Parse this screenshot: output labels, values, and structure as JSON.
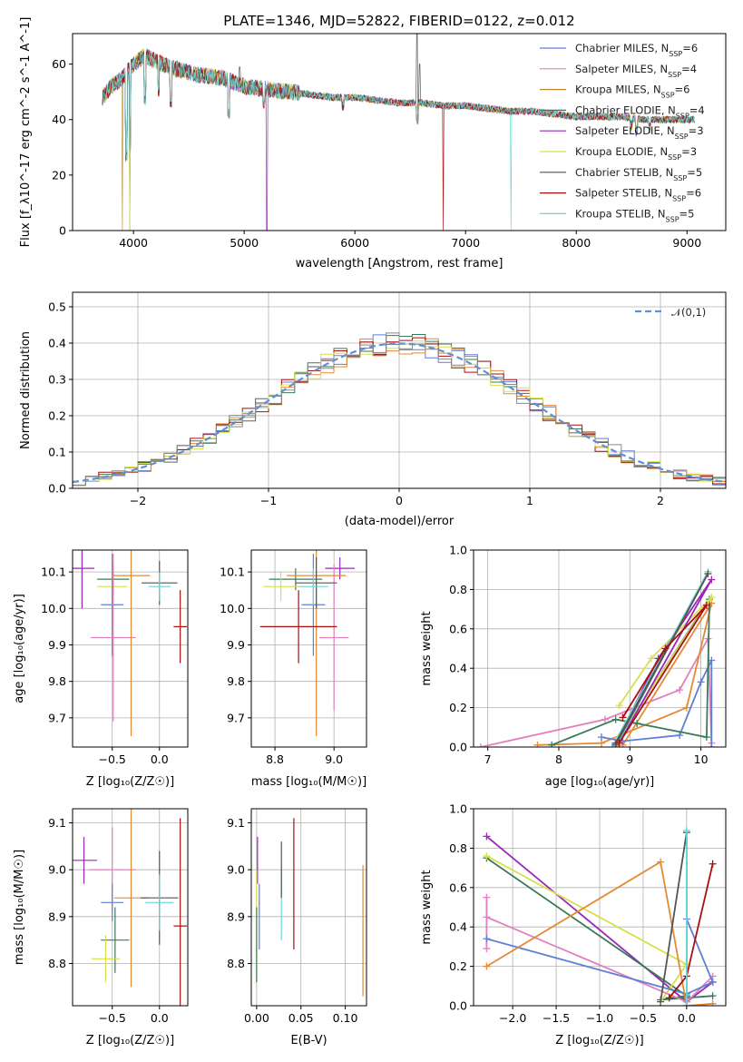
{
  "figure": {
    "title": "PLATE=1346, MJD=52822, FIBERID=0122, z=0.012"
  },
  "legend_entries": [
    {
      "name": "Chabrier MILES, N_SSP=6",
      "color": "#5f7fd6"
    },
    {
      "name": "Salpeter MILES, N_SSP=4",
      "color": "#e27fbe"
    },
    {
      "name": "Kroupa MILES, N_SSP=6",
      "color": "#c08a2a"
    },
    {
      "name": "Chabrier ELODIE, N_SSP=4",
      "color": "#3a7a5a"
    },
    {
      "name": "Salpeter ELODIE, N_SSP=3",
      "color": "#9b26b6"
    },
    {
      "name": "Kroupa ELODIE, N_SSP=3",
      "color": "#d7e04a"
    },
    {
      "name": "Chabrier STELIB, N_SSP=5",
      "color": "#555555"
    },
    {
      "name": "Salpeter STELIB, N_SSP=6",
      "color": "#a80f0f"
    },
    {
      "name": "Kroupa STELIB, N_SSP=5",
      "color": "#6ad6d6"
    }
  ],
  "chart_data": [
    {
      "id": "spectrum",
      "type": "line",
      "xlabel": "wavelength [Angstrom, rest frame]",
      "ylabel": "Flux [f_λ10^-17 erg cm^-2 s^-1 A^-1]",
      "xlim": [
        3450,
        9350
      ],
      "ylim": [
        0,
        71
      ],
      "xticks": [
        4000,
        5000,
        6000,
        7000,
        8000,
        9000
      ],
      "yticks": [
        0,
        20,
        40,
        60
      ],
      "continuum": [
        [
          3720,
          48
        ],
        [
          3800,
          52
        ],
        [
          3900,
          55
        ],
        [
          4000,
          60
        ],
        [
          4100,
          63
        ],
        [
          4200,
          61
        ],
        [
          4400,
          58
        ],
        [
          4600,
          56
        ],
        [
          4800,
          55
        ],
        [
          5000,
          52
        ],
        [
          5200,
          51
        ],
        [
          5400,
          50
        ],
        [
          5600,
          49
        ],
        [
          5800,
          48
        ],
        [
          6000,
          48
        ],
        [
          6200,
          47
        ],
        [
          6400,
          46
        ],
        [
          6600,
          46
        ],
        [
          6800,
          45
        ],
        [
          7000,
          45
        ],
        [
          7200,
          44
        ],
        [
          7400,
          43
        ],
        [
          7600,
          43
        ],
        [
          7800,
          42
        ],
        [
          8000,
          41
        ],
        [
          8200,
          41
        ],
        [
          8400,
          41
        ],
        [
          8600,
          40
        ],
        [
          8800,
          40
        ],
        [
          9000,
          40
        ],
        [
          9070,
          40
        ]
      ],
      "dips": [
        [
          3934,
          25
        ],
        [
          3969,
          28
        ],
        [
          4102,
          45
        ],
        [
          4227,
          48
        ],
        [
          4340,
          44
        ],
        [
          4861,
          40
        ],
        [
          5176,
          44
        ],
        [
          5890,
          43
        ],
        [
          6563,
          38
        ],
        [
          8498,
          36
        ],
        [
          8542,
          34
        ],
        [
          8662,
          35
        ]
      ],
      "spikes": [
        [
          6563,
          72
        ],
        [
          6583,
          60
        ],
        [
          4300,
          62
        ],
        [
          4959,
          59
        ]
      ],
      "series_color_order": [
        "#5f7fd6",
        "#e27fbe",
        "#c08a2a",
        "#3a7a5a",
        "#9b26b6",
        "#d7e04a",
        "#555555",
        "#a80f0f",
        "#6ad6d6"
      ]
    },
    {
      "id": "residuals",
      "type": "step-histogram",
      "xlabel": "(data-model)/error",
      "ylabel": "Normed distribution",
      "xlim": [
        -2.5,
        2.5
      ],
      "ylim": [
        0,
        0.54
      ],
      "xticks": [
        -2,
        -1,
        0,
        1,
        2
      ],
      "yticks": [
        0.0,
        0.1,
        0.2,
        0.3,
        0.4,
        0.5
      ],
      "reference": {
        "name": "𝒩(0,1)",
        "color": "#5f8fd6"
      },
      "bin_width": 0.1,
      "colors": [
        "#5f7fd6",
        "#e58a34",
        "#3a7a5a",
        "#a80f0f",
        "#d7e04a",
        "#888888"
      ]
    },
    {
      "id": "age_vs_Z",
      "type": "errorbar",
      "xlabel": "Z [log10(Z/Z☉)]",
      "ylabel": "age  [log10(age/yr)]",
      "xlim": [
        -0.92,
        0.3
      ],
      "ylim": [
        9.62,
        10.16
      ],
      "xticks": [
        -0.5,
        0.0
      ],
      "yticks": [
        9.7,
        9.8,
        9.9,
        10.0,
        10.1
      ],
      "points": [
        {
          "x": -0.82,
          "y": 10.11,
          "xerr": 0.13,
          "yerr": 0.11,
          "color": "#9b26b6"
        },
        {
          "x": -0.49,
          "y": 10.08,
          "xerr": 0.17,
          "yerr": 0.04,
          "color": "#3a7a5a"
        },
        {
          "x": -0.5,
          "y": 10.06,
          "xerr": 0.16,
          "yerr": 0.06,
          "color": "#d7e04a"
        },
        {
          "x": -0.5,
          "y": 10.01,
          "xerr": 0.12,
          "yerr": 0.14,
          "color": "#5f7fd6"
        },
        {
          "x": -0.49,
          "y": 9.92,
          "xerr": 0.24,
          "yerr": 0.23,
          "color": "#e27fbe"
        },
        {
          "x": -0.3,
          "y": 10.09,
          "xerr": 0.2,
          "yerr": 0.44,
          "color": "#e58a34"
        },
        {
          "x": 0.0,
          "y": 10.07,
          "xerr": 0.19,
          "yerr": 0.06,
          "color": "#555555"
        },
        {
          "x": 0.0,
          "y": 10.06,
          "xerr": 0.12,
          "yerr": 0.04,
          "color": "#6ad6d6"
        },
        {
          "x": 0.22,
          "y": 9.95,
          "xerr": 0.07,
          "yerr": 0.1,
          "color": "#a80f0f"
        }
      ]
    },
    {
      "id": "age_vs_mass",
      "type": "errorbar",
      "xlabel": "mass [log10(M/M☉)]",
      "ylabel": "",
      "xlim": [
        8.72,
        9.11
      ],
      "ylim": [
        9.62,
        10.16
      ],
      "xticks": [
        8.8,
        9.0
      ],
      "yticks": [
        9.7,
        9.8,
        9.9,
        10.0,
        10.1
      ],
      "points": [
        {
          "x": 9.02,
          "y": 10.11,
          "xerr": 0.05,
          "yerr": 0.03,
          "color": "#9b26b6"
        },
        {
          "x": 8.87,
          "y": 10.08,
          "xerr": 0.09,
          "yerr": 0.03,
          "color": "#3a7a5a"
        },
        {
          "x": 8.82,
          "y": 10.06,
          "xerr": 0.06,
          "yerr": 0.04,
          "color": "#d7e04a"
        },
        {
          "x": 8.93,
          "y": 10.01,
          "xerr": 0.04,
          "yerr": 0.14,
          "color": "#5f7fd6"
        },
        {
          "x": 9.0,
          "y": 9.92,
          "xerr": 0.05,
          "yerr": 0.2,
          "color": "#e27fbe"
        },
        {
          "x": 8.94,
          "y": 10.09,
          "xerr": 0.1,
          "yerr": 0.44,
          "color": "#e58a34"
        },
        {
          "x": 8.94,
          "y": 10.07,
          "xerr": 0.07,
          "yerr": 0.07,
          "color": "#555555"
        },
        {
          "x": 8.93,
          "y": 10.06,
          "xerr": 0.05,
          "yerr": 0.05,
          "color": "#6ad6d6"
        },
        {
          "x": 8.88,
          "y": 9.95,
          "xerr": 0.13,
          "yerr": 0.1,
          "color": "#a80f0f"
        }
      ]
    },
    {
      "id": "mw_vs_age",
      "type": "line",
      "xlabel": "age  [log10(age/yr)]",
      "ylabel": "mass weight",
      "xlim": [
        6.8,
        10.35
      ],
      "ylim": [
        0,
        1
      ],
      "xticks": [
        7,
        8,
        9,
        10
      ],
      "yticks": [
        0.0,
        0.2,
        0.4,
        0.6,
        0.8,
        1.0
      ],
      "series": [
        {
          "color": "#e27fbe",
          "points": [
            [
              6.9,
              0.0
            ],
            [
              8.65,
              0.14
            ],
            [
              9.7,
              0.29
            ],
            [
              10.1,
              0.55
            ],
            [
              10.15,
              0.02
            ]
          ]
        },
        {
          "color": "#e58a34",
          "points": [
            [
              7.7,
              0.01
            ],
            [
              8.6,
              0.02
            ],
            [
              9.8,
              0.2
            ],
            [
              10.15,
              0.73
            ],
            [
              8.9,
              0.01
            ]
          ]
        },
        {
          "color": "#5f7fd6",
          "points": [
            [
              8.6,
              0.05
            ],
            [
              8.9,
              0.03
            ],
            [
              9.7,
              0.06
            ],
            [
              10.0,
              0.33
            ],
            [
              10.15,
              0.44
            ],
            [
              10.15,
              0.0
            ]
          ]
        },
        {
          "color": "#3a7a5a",
          "points": [
            [
              7.9,
              0.01
            ],
            [
              8.8,
              0.14
            ],
            [
              9.1,
              0.12
            ],
            [
              10.08,
              0.05
            ],
            [
              10.12,
              0.75
            ],
            [
              8.8,
              0.02
            ]
          ]
        },
        {
          "color": "#d7e04a",
          "points": [
            [
              8.85,
              0.21
            ],
            [
              9.3,
              0.45
            ],
            [
              10.15,
              0.76
            ],
            [
              8.85,
              0.05
            ]
          ]
        },
        {
          "color": "#9b26b6",
          "points": [
            [
              8.8,
              0.02
            ],
            [
              9.4,
              0.45
            ],
            [
              10.15,
              0.85
            ],
            [
              8.85,
              0.02
            ]
          ]
        },
        {
          "color": "#6ad6d6",
          "points": [
            [
              8.75,
              0.0
            ],
            [
              10.1,
              0.89
            ],
            [
              8.8,
              0.0
            ]
          ]
        },
        {
          "color": "#555555",
          "points": [
            [
              8.8,
              0.01
            ],
            [
              10.1,
              0.88
            ],
            [
              8.8,
              0.02
            ]
          ]
        },
        {
          "color": "#a80f0f",
          "points": [
            [
              8.9,
              0.15
            ],
            [
              9.5,
              0.5
            ],
            [
              10.08,
              0.72
            ],
            [
              8.85,
              0.02
            ]
          ]
        }
      ]
    },
    {
      "id": "mass_vs_Z",
      "type": "errorbar",
      "xlabel": "Z [log10(Z/Z☉)]",
      "ylabel": "mass [log10(M/M☉)]",
      "xlim": [
        -0.92,
        0.3
      ],
      "ylim": [
        8.71,
        9.13
      ],
      "xticks": [
        -0.5,
        0.0
      ],
      "yticks": [
        8.8,
        8.9,
        9.0,
        9.1
      ],
      "points": [
        {
          "x": -0.8,
          "y": 9.02,
          "xerr": 0.14,
          "yerr": 0.05,
          "color": "#9b26b6"
        },
        {
          "x": -0.5,
          "y": 9.0,
          "xerr": 0.25,
          "yerr": 0.09,
          "color": "#e27fbe"
        },
        {
          "x": -0.5,
          "y": 8.93,
          "xerr": 0.12,
          "yerr": 0.04,
          "color": "#5f7fd6"
        },
        {
          "x": -0.3,
          "y": 8.94,
          "xerr": 0.18,
          "yerr": 0.19,
          "color": "#e58a34"
        },
        {
          "x": -0.47,
          "y": 8.85,
          "xerr": 0.15,
          "yerr": 0.07,
          "color": "#3a7a5a"
        },
        {
          "x": -0.57,
          "y": 8.81,
          "xerr": 0.15,
          "yerr": 0.05,
          "color": "#d7e04a"
        },
        {
          "x": 0.0,
          "y": 8.94,
          "xerr": 0.2,
          "yerr": 0.1,
          "color": "#555555"
        },
        {
          "x": 0.0,
          "y": 8.93,
          "xerr": 0.15,
          "yerr": 0.06,
          "color": "#6ad6d6"
        },
        {
          "x": 0.22,
          "y": 8.88,
          "xerr": 0.07,
          "yerr": 0.23,
          "color": "#a80f0f"
        }
      ]
    },
    {
      "id": "mass_vs_ebv",
      "type": "errorbar",
      "xlabel": "E(B-V)",
      "ylabel": "",
      "xlim": [
        -0.006,
        0.124
      ],
      "ylim": [
        8.71,
        9.13
      ],
      "xticks": [
        0.0,
        0.05,
        0.1
      ],
      "yticks": [
        8.8,
        8.9,
        9.0,
        9.1
      ],
      "points": [
        {
          "x": 0.001,
          "y": 9.02,
          "xerr": 0.0,
          "yerr": 0.05,
          "color": "#9b26b6"
        },
        {
          "x": 0.0,
          "y": 8.88,
          "xerr": 0.0,
          "yerr": 0.12,
          "color": "#d7e04a"
        },
        {
          "x": 0.003,
          "y": 8.9,
          "xerr": 0.0,
          "yerr": 0.07,
          "color": "#5f7fd6"
        },
        {
          "x": 0.0,
          "y": 8.84,
          "xerr": 0.0,
          "yerr": 0.08,
          "color": "#3a7a5a"
        },
        {
          "x": 0.028,
          "y": 8.93,
          "xerr": 0.0,
          "yerr": 0.08,
          "color": "#6ad6d6"
        },
        {
          "x": 0.028,
          "y": 9.0,
          "xerr": 0.0,
          "yerr": 0.06,
          "color": "#555555"
        },
        {
          "x": 0.042,
          "y": 8.97,
          "xerr": 0.0,
          "yerr": 0.14,
          "color": "#a80f0f"
        },
        {
          "x": 0.12,
          "y": 8.87,
          "xerr": 0.0,
          "yerr": 0.14,
          "color": "#e58a34"
        }
      ]
    },
    {
      "id": "mw_vs_Z",
      "type": "line",
      "xlabel": "Z [log10(Z/Z☉)]",
      "ylabel": "mass weight",
      "xlim": [
        -2.45,
        0.45
      ],
      "ylim": [
        0,
        1
      ],
      "xticks": [
        -2.0,
        -1.5,
        -1.0,
        -0.5,
        0.0
      ],
      "yticks": [
        0.0,
        0.2,
        0.4,
        0.6,
        0.8,
        1.0
      ],
      "series": [
        {
          "color": "#9b26b6",
          "points": [
            [
              -2.3,
              0.86
            ],
            [
              0.0,
              0.02
            ],
            [
              0.3,
              0.12
            ]
          ]
        },
        {
          "color": "#3a7a5a",
          "points": [
            [
              -2.3,
              0.75
            ],
            [
              0.0,
              0.05
            ],
            [
              -0.3,
              0.03
            ],
            [
              0.3,
              0.05
            ]
          ]
        },
        {
          "color": "#d7e04a",
          "points": [
            [
              -2.3,
              0.76
            ],
            [
              0.0,
              0.21
            ],
            [
              -0.3,
              0.02
            ]
          ]
        },
        {
          "color": "#e27fbe",
          "points": [
            [
              -2.3,
              0.55
            ],
            [
              -2.3,
              0.29
            ],
            [
              -2.3,
              0.45
            ],
            [
              0.0,
              0.02
            ],
            [
              0.3,
              0.15
            ]
          ]
        },
        {
          "color": "#5f7fd6",
          "points": [
            [
              -2.3,
              0.34
            ],
            [
              0.0,
              0.06
            ],
            [
              0.3,
              0.12
            ],
            [
              0.0,
              0.44
            ]
          ]
        },
        {
          "color": "#e58a34",
          "points": [
            [
              -2.3,
              0.2
            ],
            [
              -0.3,
              0.73
            ],
            [
              0.0,
              0.0
            ],
            [
              0.3,
              0.01
            ]
          ]
        },
        {
          "color": "#a80f0f",
          "points": [
            [
              -0.2,
              0.04
            ],
            [
              0.0,
              0.15
            ],
            [
              0.3,
              0.72
            ]
          ]
        },
        {
          "color": "#555555",
          "points": [
            [
              -0.3,
              0.02
            ],
            [
              0.0,
              0.88
            ],
            [
              0.0,
              0.0
            ]
          ]
        },
        {
          "color": "#6ad6d6",
          "points": [
            [
              0.0,
              0.89
            ],
            [
              0.0,
              0.0
            ]
          ]
        }
      ]
    }
  ]
}
